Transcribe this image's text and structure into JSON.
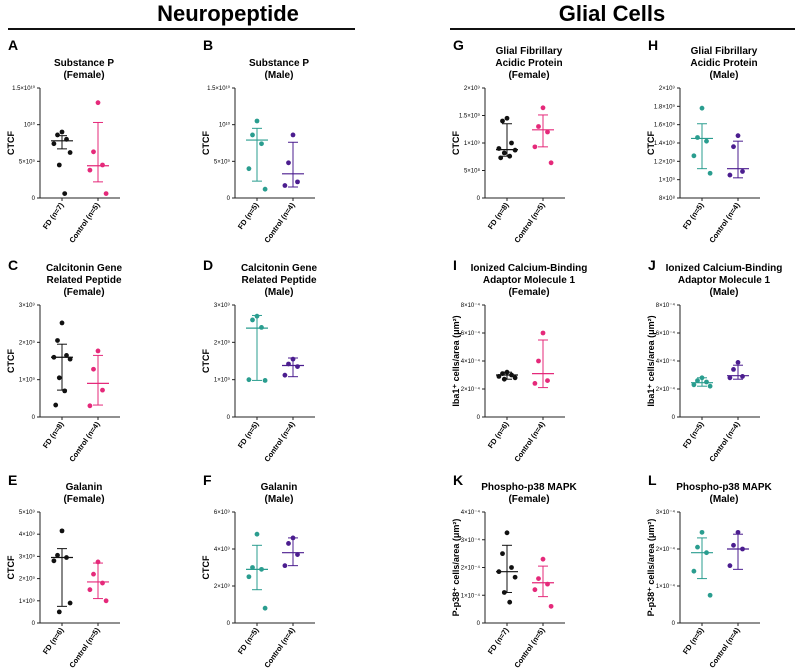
{
  "sections": [
    {
      "title": "Neuropeptide"
    },
    {
      "title": "Glial Cells"
    }
  ],
  "colors": {
    "black": "#111111",
    "pink": "#e5297a",
    "teal": "#2a9d8f",
    "purple": "#4b1d8f",
    "axis": "#222222",
    "rule": "#111111"
  },
  "chart_data": [
    {
      "letter": "A",
      "title_lines": [
        "Substance P",
        "(Female)"
      ],
      "type": "scatter",
      "ylabel": "CTCF",
      "ylim": [
        0,
        15
      ],
      "yticks": [
        0,
        5,
        10,
        15
      ],
      "ytick_labels": [
        "0",
        "5×10⁹",
        "10¹⁰",
        "1.5×10¹⁰"
      ],
      "categories": [
        "FD (n=7)",
        "Control (n=5)"
      ],
      "series": [
        {
          "name": "FD (n=7)",
          "color": "black",
          "values": [
            9.0,
            8.6,
            8.0,
            7.4,
            6.2,
            4.5,
            0.6
          ],
          "median": 7.8,
          "err": [
            6.7,
            8.5
          ]
        },
        {
          "name": "Control (n=5)",
          "color": "pink",
          "values": [
            13.0,
            6.3,
            4.5,
            3.8,
            0.6
          ],
          "median": 4.4,
          "err": [
            2.2,
            10.3
          ]
        }
      ]
    },
    {
      "letter": "B",
      "title_lines": [
        "Substance P",
        "(Male)"
      ],
      "type": "scatter",
      "ylabel": "CTCF",
      "ylim": [
        0,
        15
      ],
      "yticks": [
        0,
        5,
        10,
        15
      ],
      "ytick_labels": [
        "0",
        "5×10⁹",
        "10¹⁰",
        "1.5×10¹⁰"
      ],
      "categories": [
        "FD (n=5)",
        "Control (n=4)"
      ],
      "series": [
        {
          "name": "FD (n=5)",
          "color": "teal",
          "values": [
            10.5,
            8.6,
            7.4,
            4.0,
            1.2
          ],
          "median": 7.9,
          "err": [
            2.3,
            9.5
          ]
        },
        {
          "name": "Control (n=4)",
          "color": "purple",
          "values": [
            8.6,
            4.8,
            2.2,
            1.7
          ],
          "median": 3.3,
          "err": [
            1.5,
            7.6
          ]
        }
      ]
    },
    {
      "letter": "G",
      "title_lines": [
        "Glial Fibrillary",
        "Acidic Protein",
        "(Female)"
      ],
      "type": "scatter",
      "ylabel": "CTCF",
      "ylim": [
        0,
        20
      ],
      "yticks": [
        0,
        5,
        10,
        15,
        20
      ],
      "ytick_labels": [
        "0",
        "5×10⁸",
        "1×10⁹",
        "1.5×10⁹",
        "2×10⁹"
      ],
      "categories": [
        "FD (n=8)",
        "Control (n=5)"
      ],
      "series": [
        {
          "name": "FD (n=8)",
          "color": "black",
          "values": [
            14.5,
            14.0,
            10.0,
            9.0,
            8.7,
            8.2,
            7.6,
            7.3
          ],
          "median": 8.8,
          "err": [
            7.6,
            13.5
          ]
        },
        {
          "name": "Control (n=5)",
          "color": "pink",
          "values": [
            16.4,
            13.0,
            12.0,
            9.3,
            6.4
          ],
          "median": 12.4,
          "err": [
            9.3,
            15.1
          ]
        }
      ]
    },
    {
      "letter": "H",
      "title_lines": [
        "Glial Fibrillary",
        "Acidic Protein",
        "(Male)"
      ],
      "type": "scatter",
      "ylabel": "CTCF",
      "ylim": [
        8,
        20
      ],
      "yticks": [
        8,
        10,
        12,
        14,
        16,
        18,
        20
      ],
      "ytick_labels": [
        "8×10⁸",
        "1×10⁹",
        "1.2×10⁹",
        "1.4×10⁹",
        "1.6×10⁹",
        "1.8×10⁹",
        "2×10⁹"
      ],
      "categories": [
        "FD (n=5)",
        "Control (n=4)"
      ],
      "series": [
        {
          "name": "FD (n=5)",
          "color": "teal",
          "values": [
            17.8,
            14.6,
            14.2,
            12.6,
            10.7
          ],
          "median": 14.5,
          "err": [
            11.2,
            16.1
          ]
        },
        {
          "name": "Control (n=4)",
          "color": "purple",
          "values": [
            14.8,
            13.6,
            10.9,
            10.5
          ],
          "median": 11.2,
          "err": [
            10.2,
            14.2
          ]
        }
      ]
    },
    {
      "letter": "C",
      "title_lines": [
        "Calcitonin Gene",
        "Related Peptide",
        "(Female)"
      ],
      "type": "scatter",
      "ylabel": "CTCF",
      "ylim": [
        0,
        3
      ],
      "yticks": [
        0,
        1,
        2,
        3
      ],
      "ytick_labels": [
        "0",
        "1×10⁹",
        "2×10⁹",
        "3×10⁹"
      ],
      "categories": [
        "FD (n=8)",
        "Control (n=4)"
      ],
      "series": [
        {
          "name": "FD (n=8)",
          "color": "black",
          "values": [
            2.52,
            2.05,
            1.65,
            1.6,
            1.55,
            1.05,
            0.7,
            0.32
          ],
          "median": 1.6,
          "err": [
            0.72,
            1.95
          ]
        },
        {
          "name": "Control (n=4)",
          "color": "pink",
          "values": [
            1.77,
            1.28,
            0.72,
            0.3
          ],
          "median": 0.9,
          "err": [
            0.32,
            1.65
          ]
        }
      ]
    },
    {
      "letter": "D",
      "title_lines": [
        "Calcitonin Gene",
        "Related Peptide",
        "(Male)"
      ],
      "type": "scatter",
      "ylabel": "CTCF",
      "ylim": [
        0,
        3
      ],
      "yticks": [
        0,
        1,
        2,
        3
      ],
      "ytick_labels": [
        "0",
        "1×10⁹",
        "2×10⁹",
        "3×10⁹"
      ],
      "categories": [
        "FD (n=5)",
        "Control (n=4)"
      ],
      "series": [
        {
          "name": "FD (n=5)",
          "color": "teal",
          "values": [
            2.7,
            2.6,
            2.4,
            1.0,
            0.98
          ],
          "median": 2.38,
          "err": [
            0.98,
            2.72
          ]
        },
        {
          "name": "Control (n=4)",
          "color": "purple",
          "values": [
            1.55,
            1.42,
            1.35,
            1.12
          ],
          "median": 1.38,
          "err": [
            1.08,
            1.58
          ]
        }
      ]
    },
    {
      "letter": "I",
      "title_lines": [
        "Ionized Calcium-Binding",
        "Adaptor Molecule 1",
        "(Female)"
      ],
      "type": "scatter",
      "ylabel": "Iba1⁺ cells/area (μm²)",
      "ylim": [
        0,
        8
      ],
      "yticks": [
        0,
        2,
        4,
        6,
        8
      ],
      "ytick_labels": [
        "0",
        "2×10⁻⁴",
        "4×10⁻⁴",
        "6×10⁻⁴",
        "8×10⁻⁴"
      ],
      "categories": [
        "FD (n=6)",
        "Control (n=4)"
      ],
      "series": [
        {
          "name": "FD (n=6)",
          "color": "black",
          "values": [
            3.2,
            3.1,
            3.0,
            2.9,
            2.8,
            2.7
          ],
          "median": 3.0,
          "err": [
            2.7,
            3.2
          ]
        },
        {
          "name": "Control (n=4)",
          "color": "pink",
          "values": [
            6.0,
            4.0,
            2.6,
            2.4
          ],
          "median": 3.1,
          "err": [
            2.1,
            5.5
          ]
        }
      ]
    },
    {
      "letter": "J",
      "title_lines": [
        "Ionized Calcium-Binding",
        "Adaptor Molecule 1",
        "(Male)"
      ],
      "type": "scatter",
      "ylabel": "Iba1⁺ cells/area (μm²)",
      "ylim": [
        0,
        8
      ],
      "yticks": [
        0,
        2,
        4,
        6,
        8
      ],
      "ytick_labels": [
        "0",
        "2×10⁻⁴",
        "4×10⁻⁴",
        "6×10⁻⁴",
        "8×10⁻⁴"
      ],
      "categories": [
        "FD (n=5)",
        "Control (n=4)"
      ],
      "series": [
        {
          "name": "FD (n=5)",
          "color": "teal",
          "values": [
            2.8,
            2.6,
            2.5,
            2.3,
            2.2
          ],
          "median": 2.45,
          "err": [
            2.2,
            2.8
          ]
        },
        {
          "name": "Control (n=4)",
          "color": "purple",
          "values": [
            3.9,
            3.4,
            2.9,
            2.8
          ],
          "median": 2.95,
          "err": [
            2.7,
            3.7
          ]
        }
      ]
    },
    {
      "letter": "E",
      "title_lines": [
        "Galanin",
        "(Female)"
      ],
      "type": "scatter",
      "ylabel": "CTCF",
      "ylim": [
        0,
        5
      ],
      "yticks": [
        0,
        1,
        2,
        3,
        4,
        5
      ],
      "ytick_labels": [
        "0",
        "1×10⁹",
        "2×10⁹",
        "3×10⁹",
        "4×10⁹",
        "5×10⁹"
      ],
      "categories": [
        "FD (n=6)",
        "Control (n=5)"
      ],
      "series": [
        {
          "name": "FD (n=6)",
          "color": "black",
          "values": [
            4.15,
            3.05,
            2.95,
            2.8,
            0.9,
            0.5
          ],
          "median": 2.95,
          "err": [
            0.75,
            3.35
          ]
        },
        {
          "name": "Control (n=5)",
          "color": "pink",
          "values": [
            2.75,
            2.2,
            1.8,
            1.5,
            1.0
          ],
          "median": 1.85,
          "err": [
            1.1,
            2.7
          ]
        }
      ]
    },
    {
      "letter": "F",
      "title_lines": [
        "Galanin",
        "(Male)"
      ],
      "type": "scatter",
      "ylabel": "CTCF",
      "ylim": [
        0,
        6
      ],
      "yticks": [
        0,
        2,
        4,
        6
      ],
      "ytick_labels": [
        "0",
        "2×10⁹",
        "4×10⁹",
        "6×10⁹"
      ],
      "categories": [
        "FD (n=5)",
        "Control (n=4)"
      ],
      "series": [
        {
          "name": "FD (n=5)",
          "color": "teal",
          "values": [
            4.8,
            3.0,
            2.9,
            2.5,
            0.8
          ],
          "median": 2.9,
          "err": [
            1.8,
            4.2
          ]
        },
        {
          "name": "Control (n=4)",
          "color": "purple",
          "values": [
            4.6,
            4.3,
            3.7,
            3.1
          ],
          "median": 3.8,
          "err": [
            3.1,
            4.6
          ]
        }
      ]
    },
    {
      "letter": "K",
      "title_lines": [
        "Phospho-p38 MAPK",
        "(Female)"
      ],
      "type": "scatter",
      "ylabel": "P-p38⁺ cells/area (μm²)",
      "ylim": [
        0,
        4
      ],
      "yticks": [
        0,
        1,
        2,
        3,
        4
      ],
      "ytick_labels": [
        "0",
        "1×10⁻⁴",
        "2×10⁻⁴",
        "3×10⁻⁴",
        "4×10⁻⁴"
      ],
      "categories": [
        "FD (n=7)",
        "Control (n=5)"
      ],
      "series": [
        {
          "name": "FD (n=7)",
          "color": "black",
          "values": [
            3.25,
            2.5,
            2.0,
            1.85,
            1.65,
            1.1,
            0.75
          ],
          "median": 1.85,
          "err": [
            1.1,
            2.8
          ]
        },
        {
          "name": "Control (n=5)",
          "color": "pink",
          "values": [
            2.3,
            1.6,
            1.4,
            1.2,
            0.6
          ],
          "median": 1.45,
          "err": [
            0.95,
            2.05
          ]
        }
      ]
    },
    {
      "letter": "L",
      "title_lines": [
        "Phospho-p38 MAPK",
        "(Male)"
      ],
      "type": "scatter",
      "ylabel": "P-p38⁺ cells/area (μm²)",
      "ylim": [
        0,
        3
      ],
      "yticks": [
        0,
        1,
        2,
        3
      ],
      "ytick_labels": [
        "0",
        "1×10⁻⁴",
        "2×10⁻⁴",
        "3×10⁻⁴"
      ],
      "categories": [
        "FD (n=5)",
        "Control (n=4)"
      ],
      "series": [
        {
          "name": "FD (n=5)",
          "color": "teal",
          "values": [
            2.45,
            2.05,
            1.9,
            1.4,
            0.75
          ],
          "median": 1.9,
          "err": [
            1.2,
            2.3
          ]
        },
        {
          "name": "Control (n=4)",
          "color": "purple",
          "values": [
            2.45,
            2.1,
            2.0,
            1.55
          ],
          "median": 2.0,
          "err": [
            1.45,
            2.4
          ]
        }
      ]
    }
  ]
}
